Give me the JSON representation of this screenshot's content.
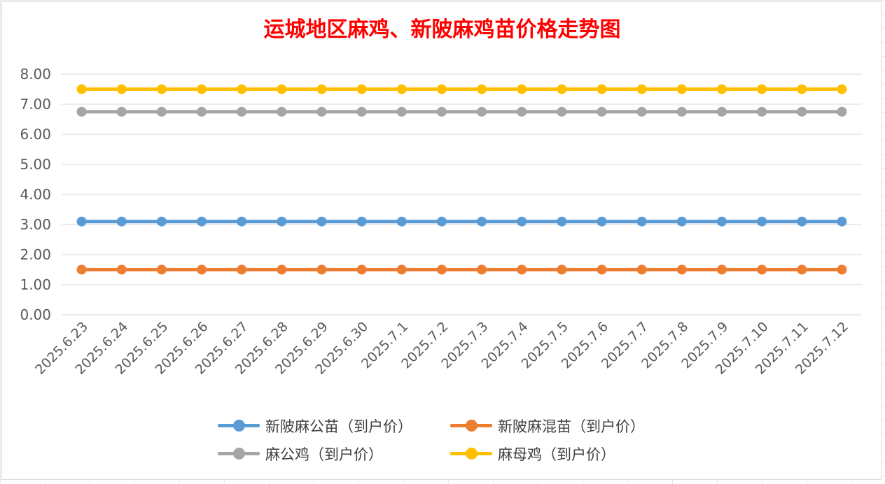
{
  "chart_data": {
    "type": "line",
    "title": "运城地区麻鸡、新陂麻鸡苗价格走势图",
    "xlabel": "",
    "ylabel": "",
    "ylim": [
      0,
      8
    ],
    "yticks": [
      "0.00",
      "1.00",
      "2.00",
      "3.00",
      "4.00",
      "5.00",
      "6.00",
      "7.00",
      "8.00"
    ],
    "grid": true,
    "legend_position": "bottom",
    "categories": [
      "2025.6.23",
      "2025.6.24",
      "2025.6.25",
      "2025.6.26",
      "2025.6.27",
      "2025.6.28",
      "2025.6.29",
      "2025.6.30",
      "2025.7.1",
      "2025.7.2",
      "2025.7.3",
      "2025.7.4",
      "2025.7.5",
      "2025.7.6",
      "2025.7.7",
      "2025.7.8",
      "2025.7.9",
      "2025.7.10",
      "2025.7.11",
      "2025.7.12"
    ],
    "series": [
      {
        "name": "新陂麻公苗（到户价）",
        "color": "#5b9bd5",
        "values": [
          3.1,
          3.1,
          3.1,
          3.1,
          3.1,
          3.1,
          3.1,
          3.1,
          3.1,
          3.1,
          3.1,
          3.1,
          3.1,
          3.1,
          3.1,
          3.1,
          3.1,
          3.1,
          3.1,
          3.1
        ]
      },
      {
        "name": "新陂麻混苗（到户价）",
        "color": "#ed7d31",
        "values": [
          1.5,
          1.5,
          1.5,
          1.5,
          1.5,
          1.5,
          1.5,
          1.5,
          1.5,
          1.5,
          1.5,
          1.5,
          1.5,
          1.5,
          1.5,
          1.5,
          1.5,
          1.5,
          1.5,
          1.5
        ]
      },
      {
        "name": "麻公鸡（到户价）",
        "color": "#a5a5a5",
        "values": [
          6.75,
          6.75,
          6.75,
          6.75,
          6.75,
          6.75,
          6.75,
          6.75,
          6.75,
          6.75,
          6.75,
          6.75,
          6.75,
          6.75,
          6.75,
          6.75,
          6.75,
          6.75,
          6.75,
          6.75
        ]
      },
      {
        "name": "麻母鸡（到户价）",
        "color": "#ffc000",
        "values": [
          7.5,
          7.5,
          7.5,
          7.5,
          7.5,
          7.5,
          7.5,
          7.5,
          7.5,
          7.5,
          7.5,
          7.5,
          7.5,
          7.5,
          7.5,
          7.5,
          7.5,
          7.5,
          7.5,
          7.5
        ]
      }
    ]
  }
}
